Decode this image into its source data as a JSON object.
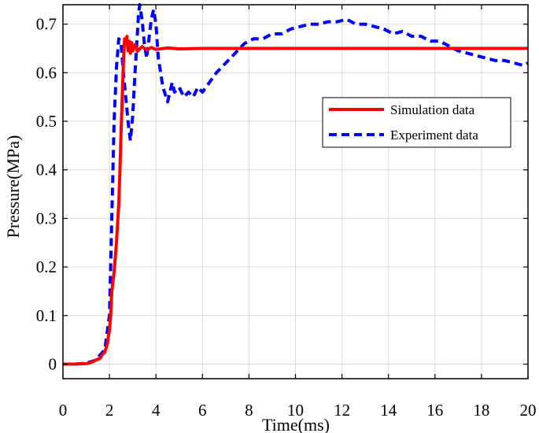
{
  "chart_data": {
    "type": "line",
    "title": "",
    "xlabel": "Time(ms)",
    "ylabel": "Pressure(MPa)",
    "xlim": [
      0,
      20
    ],
    "ylim": [
      -0.03,
      0.74
    ],
    "xticks": [
      0,
      2,
      4,
      6,
      8,
      10,
      12,
      14,
      16,
      18,
      20
    ],
    "yticks": [
      0,
      0.1,
      0.2,
      0.3,
      0.4,
      0.5,
      0.6,
      0.7
    ],
    "xtick_labels": [
      "0",
      "2",
      "4",
      "6",
      "8",
      "10",
      "12",
      "14",
      "16",
      "18",
      "20"
    ],
    "ytick_labels": [
      "0",
      "0.1",
      "0.2",
      "0.3",
      "0.4",
      "0.5",
      "0.6",
      "0.7"
    ],
    "grid": true,
    "legend_position": "center-right",
    "series": [
      {
        "name": "Simulation data",
        "color": "#ff0000",
        "style": "solid",
        "x": [
          0,
          0.5,
          1.0,
          1.2,
          1.4,
          1.6,
          1.7,
          1.8,
          1.9,
          2.0,
          2.05,
          2.1,
          2.2,
          2.3,
          2.4,
          2.45,
          2.5,
          2.55,
          2.6,
          2.65,
          2.7,
          2.75,
          2.8,
          2.85,
          2.9,
          2.95,
          3.0,
          3.1,
          3.2,
          3.4,
          3.6,
          3.8,
          4.0,
          4.5,
          5.0,
          6.0,
          8.0,
          10.0,
          12.0,
          14.0,
          16.0,
          18.0,
          20.0
        ],
        "y": [
          0,
          0,
          0.001,
          0.003,
          0.008,
          0.012,
          0.02,
          0.025,
          0.04,
          0.07,
          0.1,
          0.15,
          0.19,
          0.25,
          0.33,
          0.4,
          0.48,
          0.55,
          0.62,
          0.67,
          0.66,
          0.675,
          0.645,
          0.665,
          0.64,
          0.662,
          0.645,
          0.658,
          0.644,
          0.654,
          0.647,
          0.652,
          0.648,
          0.651,
          0.649,
          0.65,
          0.65,
          0.65,
          0.65,
          0.65,
          0.65,
          0.65,
          0.65
        ]
      },
      {
        "name": "Experiment data",
        "color": "#0000ff",
        "style": "dashed",
        "x": [
          0,
          0.5,
          1.0,
          1.4,
          1.8,
          2.0,
          2.1,
          2.2,
          2.3,
          2.4,
          2.5,
          2.6,
          2.7,
          2.8,
          2.9,
          3.0,
          3.1,
          3.2,
          3.25,
          3.3,
          3.4,
          3.5,
          3.6,
          3.7,
          3.8,
          3.9,
          4.0,
          4.1,
          4.3,
          4.5,
          4.7,
          4.8,
          5.0,
          5.2,
          5.4,
          5.6,
          5.8,
          6.0,
          6.3,
          6.6,
          7.0,
          7.4,
          7.8,
          8.2,
          8.6,
          9.0,
          9.4,
          9.8,
          10.2,
          10.6,
          11.0,
          11.4,
          11.8,
          12.2,
          12.6,
          13.0,
          13.4,
          13.8,
          14.2,
          14.6,
          15.0,
          15.4,
          15.8,
          16.2,
          16.6,
          17.0,
          17.4,
          17.8,
          18.2,
          18.6,
          19.0,
          19.4,
          19.8,
          20.0
        ],
        "y": [
          0,
          0,
          0.002,
          0.008,
          0.03,
          0.1,
          0.3,
          0.5,
          0.61,
          0.67,
          0.66,
          0.6,
          0.55,
          0.5,
          0.46,
          0.51,
          0.6,
          0.68,
          0.72,
          0.74,
          0.71,
          0.66,
          0.63,
          0.67,
          0.71,
          0.73,
          0.7,
          0.63,
          0.57,
          0.54,
          0.58,
          0.56,
          0.57,
          0.55,
          0.56,
          0.55,
          0.57,
          0.56,
          0.58,
          0.6,
          0.62,
          0.64,
          0.66,
          0.67,
          0.67,
          0.68,
          0.68,
          0.69,
          0.695,
          0.7,
          0.7,
          0.705,
          0.705,
          0.71,
          0.7,
          0.7,
          0.695,
          0.69,
          0.68,
          0.685,
          0.675,
          0.675,
          0.665,
          0.665,
          0.655,
          0.645,
          0.64,
          0.635,
          0.63,
          0.625,
          0.625,
          0.62,
          0.615,
          0.62
        ]
      }
    ]
  }
}
